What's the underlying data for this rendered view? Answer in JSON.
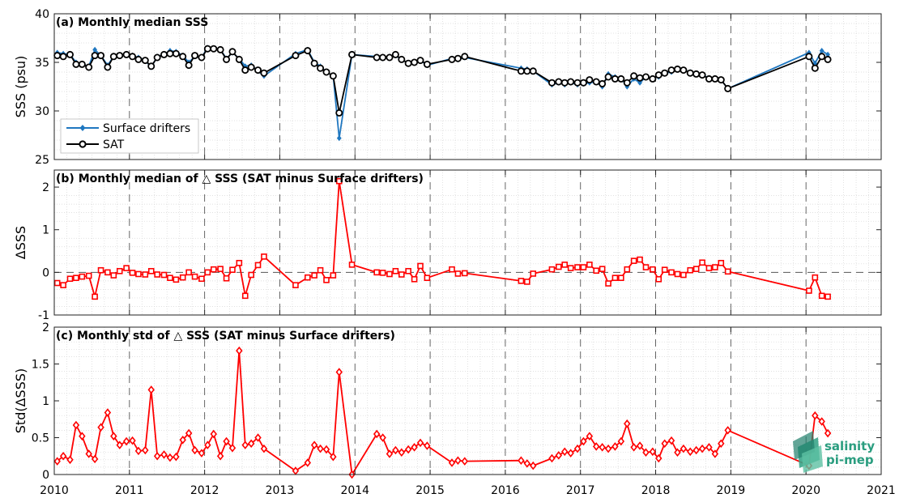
{
  "colors": {
    "drifter": "#1f77c0",
    "sat": "#000000",
    "delta": "#ff0000"
  },
  "logo": {
    "line1": "salinity",
    "line2": "pi-mep"
  },
  "chart_data": [
    {
      "id": "a",
      "type": "line",
      "title": "(a) Monthly median SSS",
      "xlabel": "",
      "ylabel": "SSS (psu)",
      "xlim": [
        2010,
        2021
      ],
      "ylim": [
        25,
        40
      ],
      "yticks": [
        25,
        30,
        35,
        40
      ],
      "xticks": [
        2010,
        2011,
        2012,
        2013,
        2014,
        2015,
        2016,
        2017,
        2018,
        2019,
        2020,
        2021
      ],
      "legend": {
        "position": "lower-left",
        "entries": [
          "Surface drifters",
          "SAT"
        ]
      },
      "series": [
        {
          "name": "Surface drifters",
          "marker": "diamond",
          "x": [
            2010.04,
            2010.12,
            2010.21,
            2010.29,
            2010.37,
            2010.46,
            2010.54,
            2010.62,
            2010.71,
            2010.79,
            2010.87,
            2010.96,
            2011.04,
            2011.12,
            2011.21,
            2011.29,
            2011.37,
            2011.46,
            2011.54,
            2011.62,
            2011.71,
            2011.79,
            2011.87,
            2011.96,
            2012.04,
            2012.12,
            2012.21,
            2012.29,
            2012.37,
            2012.46,
            2012.54,
            2012.62,
            2012.71,
            2012.79,
            2013.21,
            2013.37,
            2013.46,
            2013.54,
            2013.62,
            2013.71,
            2013.79,
            2013.96,
            2014.29,
            2014.37,
            2014.46,
            2014.54,
            2014.62,
            2014.71,
            2014.79,
            2014.87,
            2014.96,
            2015.29,
            2015.37,
            2015.46,
            2016.21,
            2016.29,
            2016.37,
            2016.62,
            2016.71,
            2016.79,
            2016.87,
            2016.96,
            2017.04,
            2017.12,
            2017.21,
            2017.29,
            2017.37,
            2017.46,
            2017.54,
            2017.62,
            2017.71,
            2017.79,
            2017.87,
            2017.96,
            2018.04,
            2018.12,
            2018.21,
            2018.29,
            2018.37,
            2018.46,
            2018.54,
            2018.62,
            2018.71,
            2018.79,
            2018.87,
            2018.96,
            2020.04,
            2020.12,
            2020.21,
            2020.29
          ],
          "y": [
            36.0,
            35.9,
            35.8,
            35.0,
            34.8,
            34.6,
            36.3,
            35.7,
            34.7,
            35.6,
            35.7,
            35.8,
            35.7,
            35.5,
            35.2,
            34.5,
            35.6,
            35.8,
            36.2,
            36.1,
            35.7,
            35.0,
            35.6,
            35.5,
            36.5,
            36.4,
            36.3,
            35.4,
            36.0,
            35.4,
            34.6,
            34.7,
            34.1,
            33.6,
            35.9,
            36.3,
            35.0,
            34.6,
            34.0,
            33.6,
            27.2,
            35.8,
            35.6,
            35.4,
            35.6,
            35.7,
            35.3,
            34.9,
            35.0,
            35.2,
            34.7,
            35.4,
            35.3,
            35.5,
            34.4,
            34.3,
            34.1,
            32.7,
            32.9,
            32.7,
            32.9,
            32.7,
            32.8,
            32.9,
            33.0,
            32.5,
            33.8,
            33.5,
            33.4,
            32.5,
            33.3,
            32.9,
            33.5,
            33.4,
            33.5,
            33.9,
            34.0,
            34.3,
            34.2,
            34.0,
            33.8,
            33.7,
            33.4,
            33.4,
            33.2,
            32.3,
            36.0,
            34.9,
            36.2,
            35.8
          ]
        },
        {
          "name": "SAT",
          "marker": "circle",
          "x": [
            2010.04,
            2010.12,
            2010.21,
            2010.29,
            2010.37,
            2010.46,
            2010.54,
            2010.62,
            2010.71,
            2010.79,
            2010.87,
            2010.96,
            2011.04,
            2011.12,
            2011.21,
            2011.29,
            2011.37,
            2011.46,
            2011.54,
            2011.62,
            2011.71,
            2011.79,
            2011.87,
            2011.96,
            2012.04,
            2012.12,
            2012.21,
            2012.29,
            2012.37,
            2012.46,
            2012.54,
            2012.62,
            2012.71,
            2012.79,
            2013.21,
            2013.37,
            2013.46,
            2013.54,
            2013.62,
            2013.71,
            2013.79,
            2013.96,
            2014.29,
            2014.37,
            2014.46,
            2014.54,
            2014.62,
            2014.71,
            2014.79,
            2014.87,
            2014.96,
            2015.29,
            2015.37,
            2015.46,
            2016.21,
            2016.29,
            2016.37,
            2016.62,
            2016.71,
            2016.79,
            2016.87,
            2016.96,
            2017.04,
            2017.12,
            2017.21,
            2017.29,
            2017.37,
            2017.46,
            2017.54,
            2017.62,
            2017.71,
            2017.79,
            2017.87,
            2017.96,
            2018.04,
            2018.12,
            2018.21,
            2018.29,
            2018.37,
            2018.46,
            2018.54,
            2018.62,
            2018.71,
            2018.79,
            2018.87,
            2018.96,
            2020.04,
            2020.12,
            2020.21,
            2020.29
          ],
          "y": [
            35.7,
            35.6,
            35.8,
            34.8,
            34.8,
            34.5,
            35.7,
            35.7,
            34.5,
            35.6,
            35.7,
            35.8,
            35.6,
            35.3,
            35.2,
            34.6,
            35.5,
            35.8,
            35.9,
            35.9,
            35.6,
            34.7,
            35.7,
            35.5,
            36.4,
            36.4,
            36.3,
            35.3,
            36.1,
            35.3,
            34.2,
            34.5,
            34.2,
            33.9,
            35.7,
            36.2,
            34.9,
            34.4,
            34.0,
            33.6,
            29.8,
            35.8,
            35.5,
            35.5,
            35.5,
            35.8,
            35.3,
            34.9,
            35.0,
            35.2,
            34.8,
            35.3,
            35.4,
            35.6,
            34.1,
            34.1,
            34.1,
            32.9,
            33.0,
            32.9,
            33.0,
            32.9,
            32.9,
            33.2,
            33.0,
            32.8,
            33.5,
            33.3,
            33.3,
            32.9,
            33.6,
            33.4,
            33.5,
            33.3,
            33.7,
            33.9,
            34.2,
            34.3,
            34.2,
            33.9,
            33.8,
            33.7,
            33.3,
            33.3,
            33.2,
            32.3,
            35.6,
            34.4,
            35.6,
            35.3
          ]
        }
      ]
    },
    {
      "id": "b",
      "type": "line",
      "title": "(b) Monthly median of △ SSS (SAT minus Surface drifters)",
      "xlabel": "",
      "ylabel": "ΔSSS",
      "xlim": [
        2010,
        2021
      ],
      "ylim": [
        -1,
        2.4
      ],
      "yticks": [
        -1,
        0,
        1,
        2
      ],
      "xticks": [
        2010,
        2011,
        2012,
        2013,
        2014,
        2015,
        2016,
        2017,
        2018,
        2019,
        2020,
        2021
      ],
      "zero_line": true,
      "series": [
        {
          "name": "",
          "marker": "square",
          "x": [
            2010.04,
            2010.12,
            2010.21,
            2010.29,
            2010.37,
            2010.46,
            2010.54,
            2010.62,
            2010.71,
            2010.79,
            2010.87,
            2010.96,
            2011.04,
            2011.12,
            2011.21,
            2011.29,
            2011.37,
            2011.46,
            2011.54,
            2011.62,
            2011.71,
            2011.79,
            2011.87,
            2011.96,
            2012.04,
            2012.12,
            2012.21,
            2012.29,
            2012.37,
            2012.46,
            2012.54,
            2012.62,
            2012.71,
            2012.79,
            2013.21,
            2013.37,
            2013.46,
            2013.54,
            2013.62,
            2013.71,
            2013.79,
            2013.96,
            2014.29,
            2014.37,
            2014.46,
            2014.54,
            2014.62,
            2014.71,
            2014.79,
            2014.87,
            2014.96,
            2015.29,
            2015.37,
            2015.46,
            2016.21,
            2016.29,
            2016.37,
            2016.62,
            2016.71,
            2016.79,
            2016.87,
            2016.96,
            2017.04,
            2017.12,
            2017.21,
            2017.29,
            2017.37,
            2017.46,
            2017.54,
            2017.62,
            2017.71,
            2017.79,
            2017.87,
            2017.96,
            2018.04,
            2018.12,
            2018.21,
            2018.29,
            2018.37,
            2018.46,
            2018.54,
            2018.62,
            2018.71,
            2018.79,
            2018.87,
            2018.96,
            2020.04,
            2020.12,
            2020.21,
            2020.29
          ],
          "y": [
            -0.25,
            -0.3,
            -0.15,
            -0.13,
            -0.1,
            -0.08,
            -0.57,
            0.05,
            0.0,
            -0.07,
            0.03,
            0.1,
            -0.01,
            -0.04,
            -0.05,
            0.03,
            -0.05,
            -0.06,
            -0.13,
            -0.17,
            -0.12,
            0.0,
            -0.1,
            -0.15,
            0.0,
            0.07,
            0.08,
            -0.14,
            0.06,
            0.22,
            -0.55,
            -0.06,
            0.17,
            0.37,
            -0.3,
            -0.12,
            -0.07,
            0.05,
            -0.18,
            -0.07,
            2.14,
            0.18,
            0.0,
            -0.01,
            -0.04,
            0.03,
            -0.05,
            0.03,
            -0.16,
            0.15,
            -0.13,
            0.07,
            -0.03,
            -0.02,
            -0.2,
            -0.22,
            -0.03,
            0.07,
            0.13,
            0.18,
            0.1,
            0.12,
            0.12,
            0.18,
            0.04,
            0.08,
            -0.26,
            -0.13,
            -0.13,
            0.07,
            0.27,
            0.3,
            0.12,
            0.07,
            -0.16,
            0.06,
            0.0,
            -0.04,
            -0.06,
            0.05,
            0.08,
            0.23,
            0.1,
            0.12,
            0.22,
            0.02,
            -0.43,
            -0.12,
            -0.55,
            -0.57
          ]
        }
      ]
    },
    {
      "id": "c",
      "type": "line",
      "title": "(c) Monthly std of △ SSS (SAT minus Surface drifters)",
      "xlabel": "",
      "ylabel": "Std(ΔSSS)",
      "xlim": [
        2010,
        2021
      ],
      "ylim": [
        0,
        2
      ],
      "yticks": [
        0,
        0.5,
        1,
        1.5,
        2
      ],
      "xticks": [
        2010,
        2011,
        2012,
        2013,
        2014,
        2015,
        2016,
        2017,
        2018,
        2019,
        2020,
        2021
      ],
      "series": [
        {
          "name": "",
          "marker": "diamond",
          "x": [
            2010.04,
            2010.12,
            2010.21,
            2010.29,
            2010.37,
            2010.46,
            2010.54,
            2010.62,
            2010.71,
            2010.79,
            2010.87,
            2010.96,
            2011.04,
            2011.12,
            2011.21,
            2011.29,
            2011.37,
            2011.46,
            2011.54,
            2011.62,
            2011.71,
            2011.79,
            2011.87,
            2011.96,
            2012.04,
            2012.12,
            2012.21,
            2012.29,
            2012.37,
            2012.46,
            2012.54,
            2012.62,
            2012.71,
            2012.79,
            2013.21,
            2013.37,
            2013.46,
            2013.54,
            2013.62,
            2013.71,
            2013.79,
            2013.96,
            2014.29,
            2014.37,
            2014.46,
            2014.54,
            2014.62,
            2014.71,
            2014.79,
            2014.87,
            2014.96,
            2015.29,
            2015.37,
            2015.46,
            2016.21,
            2016.29,
            2016.37,
            2016.62,
            2016.71,
            2016.79,
            2016.87,
            2016.96,
            2017.04,
            2017.12,
            2017.21,
            2017.29,
            2017.37,
            2017.46,
            2017.54,
            2017.62,
            2017.71,
            2017.79,
            2017.87,
            2017.96,
            2018.04,
            2018.12,
            2018.21,
            2018.29,
            2018.37,
            2018.46,
            2018.54,
            2018.62,
            2018.71,
            2018.79,
            2018.87,
            2018.96,
            2020.04,
            2020.12,
            2020.21,
            2020.29
          ],
          "y": [
            0.18,
            0.25,
            0.2,
            0.67,
            0.52,
            0.28,
            0.21,
            0.64,
            0.84,
            0.52,
            0.4,
            0.45,
            0.46,
            0.32,
            0.33,
            1.15,
            0.25,
            0.27,
            0.23,
            0.24,
            0.47,
            0.56,
            0.33,
            0.29,
            0.4,
            0.55,
            0.25,
            0.45,
            0.36,
            1.68,
            0.4,
            0.42,
            0.5,
            0.35,
            0.05,
            0.16,
            0.4,
            0.35,
            0.34,
            0.24,
            1.39,
            0.0,
            0.55,
            0.5,
            0.28,
            0.33,
            0.3,
            0.34,
            0.37,
            0.43,
            0.39,
            0.16,
            0.19,
            0.18,
            0.19,
            0.15,
            0.12,
            0.22,
            0.26,
            0.31,
            0.29,
            0.35,
            0.45,
            0.52,
            0.38,
            0.37,
            0.35,
            0.38,
            0.45,
            0.69,
            0.37,
            0.39,
            0.3,
            0.31,
            0.22,
            0.42,
            0.46,
            0.3,
            0.35,
            0.31,
            0.33,
            0.35,
            0.37,
            0.28,
            0.42,
            0.6,
            0.12,
            0.8,
            0.72,
            0.56
          ]
        }
      ]
    }
  ]
}
